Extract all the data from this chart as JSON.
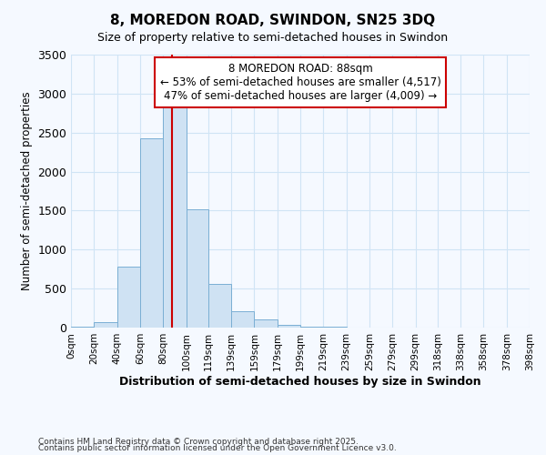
{
  "title": "8, MOREDON ROAD, SWINDON, SN25 3DQ",
  "subtitle": "Size of property relative to semi-detached houses in Swindon",
  "xlabel": "Distribution of semi-detached houses by size in Swindon",
  "ylabel": "Number of semi-detached properties",
  "annotation_title": "8 MOREDON ROAD: 88sqm",
  "annotation_line1": "← 53% of semi-detached houses are smaller (4,517)",
  "annotation_line2": "47% of semi-detached houses are larger (4,009) →",
  "property_size": 88,
  "footnote1": "Contains HM Land Registry data © Crown copyright and database right 2025.",
  "footnote2": "Contains public sector information licensed under the Open Government Licence v3.0.",
  "bar_color": "#cfe2f3",
  "bar_edge_color": "#7aafd4",
  "vline_color": "#cc0000",
  "background_color": "#f5f9ff",
  "plot_bg_color": "#f5f9ff",
  "annotation_box_color": "#ffffff",
  "annotation_box_edge": "#cc0000",
  "grid_color": "#d0e4f5",
  "bins": [
    0,
    20,
    40,
    60,
    80,
    100,
    119,
    139,
    159,
    179,
    199,
    219,
    239,
    259,
    279,
    299,
    318,
    338,
    358,
    378,
    398
  ],
  "counts": [
    10,
    75,
    780,
    2430,
    2870,
    1520,
    555,
    210,
    100,
    38,
    15,
    6,
    3,
    2,
    1,
    1,
    1,
    0,
    0,
    0
  ],
  "ylim": [
    0,
    3500
  ],
  "yticks": [
    0,
    500,
    1000,
    1500,
    2000,
    2500,
    3000,
    3500
  ]
}
